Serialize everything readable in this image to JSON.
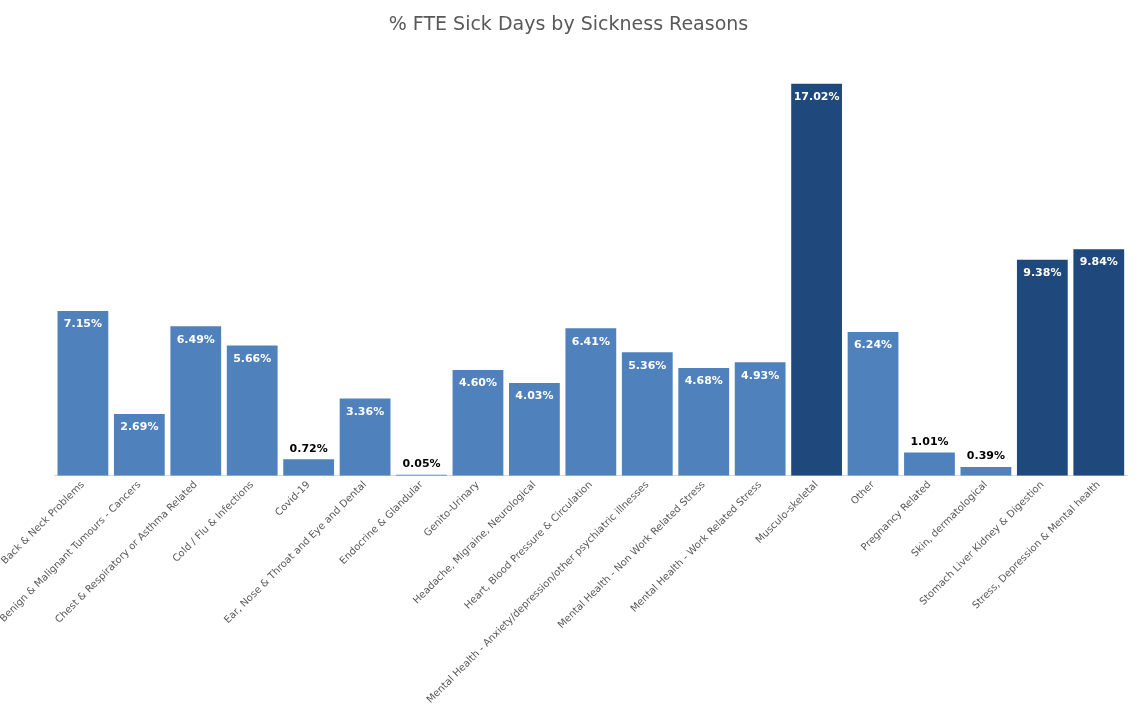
{
  "chart_data": {
    "type": "bar",
    "title": "% FTE Sick Days by Sickness Reasons",
    "categories": [
      "Back & Neck Problems",
      "Benign & Malignant Tumours - Cancers",
      "Chest & Respiratory or Asthma Related",
      "Cold / Flu & Infections",
      "Covid-19",
      "Ear, Nose & Throat and Eye and Dental",
      "Endocrine & Glandular",
      "Genito-Urinary",
      "Headache, Migraine, Neurological",
      "Heart, Blood Pressure & Circulation",
      "Mental Health - Anxiety/depression/other psychiatric illnesses",
      "Mental Health - Non Work Related Stress",
      "Mental Health - Work Related Stress",
      "Musculo-skeletal",
      "Other",
      "Pregnancy Related",
      "Skin, dermatological",
      "Stomach Liver Kidney & Digestion",
      "Stress, Depression & Mental health"
    ],
    "values": [
      7.15,
      2.69,
      6.49,
      5.66,
      0.72,
      3.36,
      0.05,
      4.6,
      4.03,
      6.41,
      5.36,
      4.68,
      4.93,
      17.02,
      6.24,
      1.01,
      0.39,
      9.38,
      9.84
    ],
    "value_labels": [
      "7.15%",
      "2.69%",
      "6.49%",
      "5.66%",
      "0.72%",
      "3.36%",
      "0.05%",
      "4.60%",
      "4.03%",
      "6.41%",
      "5.36%",
      "4.68%",
      "4.93%",
      "17.02%",
      "6.24%",
      "1.01%",
      "0.39%",
      "9.38%",
      "9.84%"
    ],
    "colors": [
      "#4f81bd",
      "#4f81bd",
      "#4f81bd",
      "#4f81bd",
      "#4f81bd",
      "#4f81bd",
      "#4f81bd",
      "#4f81bd",
      "#4f81bd",
      "#4f81bd",
      "#4f81bd",
      "#4f81bd",
      "#4f81bd",
      "#1f497d",
      "#4f81bd",
      "#4f81bd",
      "#4f81bd",
      "#1f497d",
      "#1f497d"
    ],
    "grid": false,
    "legend": false
  }
}
